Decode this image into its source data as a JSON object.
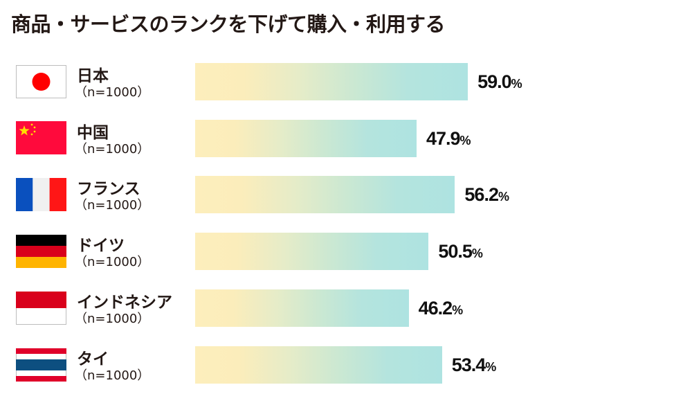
{
  "title": "商品・サービスのランクを下げて購入・利用する",
  "rows": [
    {
      "country": "日本",
      "n_label": "（n=1000）",
      "value": 59.0,
      "value_text": "59.0",
      "unit": "%",
      "flag": "japan-flag-icon"
    },
    {
      "country": "中国",
      "n_label": "（n=1000）",
      "value": 47.9,
      "value_text": "47.9",
      "unit": "%",
      "flag": "china-flag-icon"
    },
    {
      "country": "フランス",
      "n_label": "（n=1000）",
      "value": 56.2,
      "value_text": "56.2",
      "unit": "%",
      "flag": "france-flag-icon"
    },
    {
      "country": "ドイツ",
      "n_label": "（n=1000）",
      "value": 50.5,
      "value_text": "50.5",
      "unit": "%",
      "flag": "germany-flag-icon"
    },
    {
      "country": "インドネシア",
      "n_label": "（n=1000）",
      "value": 46.2,
      "value_text": "46.2",
      "unit": "%",
      "flag": "indonesia-flag-icon"
    },
    {
      "country": "タイ",
      "n_label": "（n=1000）",
      "value": 53.4,
      "value_text": "53.4",
      "unit": "%",
      "flag": "thailand-flag-icon"
    }
  ],
  "colors": {
    "bar_gradient_start": "#fdeebc",
    "bar_gradient_end": "#aee3e1",
    "text": "#231815"
  },
  "chart_data": {
    "type": "bar",
    "orientation": "horizontal",
    "title": "商品・サービスのランクを下げて購入・利用する",
    "categories": [
      "日本",
      "中国",
      "フランス",
      "ドイツ",
      "インドネシア",
      "タイ"
    ],
    "sample_sizes": [
      "n=1000",
      "n=1000",
      "n=1000",
      "n=1000",
      "n=1000",
      "n=1000"
    ],
    "values": [
      59.0,
      47.9,
      56.2,
      50.5,
      46.2,
      53.4
    ],
    "unit": "%",
    "xlabel": "",
    "ylabel": "",
    "grid": false,
    "legend": "none",
    "data_labels": true
  }
}
